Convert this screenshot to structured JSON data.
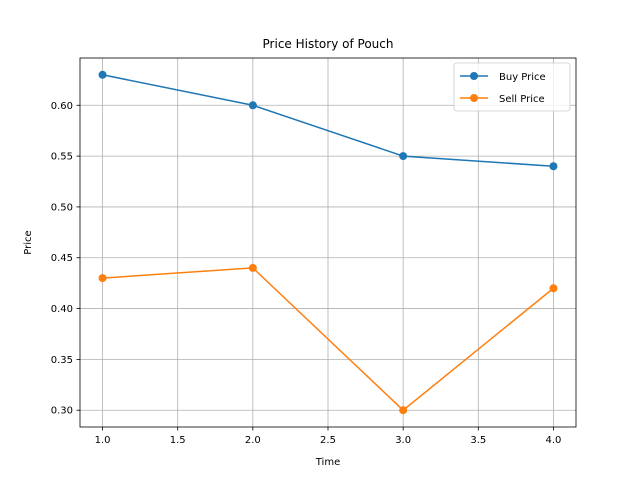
{
  "chart_data": {
    "type": "line",
    "title": "Price History of Pouch",
    "xlabel": "Time",
    "ylabel": "Price",
    "x": [
      1.0,
      2.0,
      3.0,
      4.0
    ],
    "xlim": [
      0.85,
      4.15
    ],
    "ylim": [
      0.2835,
      0.6465
    ],
    "xticks": [
      "1.0",
      "1.5",
      "2.0",
      "2.5",
      "3.0",
      "3.5",
      "4.0"
    ],
    "yticks": [
      "0.30",
      "0.35",
      "0.40",
      "0.45",
      "0.50",
      "0.55",
      "0.60"
    ],
    "grid": true,
    "legend_position": "top-right",
    "series": [
      {
        "name": "Buy Price",
        "values": [
          0.63,
          0.6,
          0.55,
          0.54
        ],
        "color": "#1f77b4",
        "marker": "circle"
      },
      {
        "name": "Sell Price",
        "values": [
          0.43,
          0.44,
          0.3,
          0.42
        ],
        "color": "#ff7f0e",
        "marker": "circle"
      }
    ]
  }
}
